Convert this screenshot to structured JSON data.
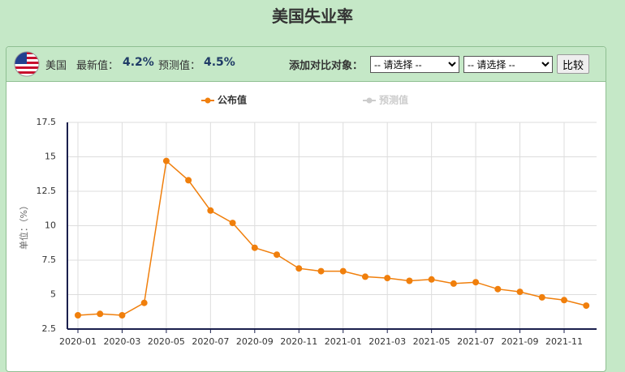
{
  "page": {
    "title": "美国失业率",
    "country": "美国",
    "latest_label": "最新值：",
    "latest_value": "4.2%",
    "forecast_label": "预测值：",
    "forecast_value": "4.5%",
    "compare_label": "添加对比对象：",
    "select_placeholder": "-- 请选择 --",
    "button": "比较"
  },
  "chart_data": {
    "type": "line",
    "categories": [
      "2020-01",
      null,
      "2020-03",
      null,
      "2020-05",
      null,
      "2020-07",
      null,
      "2020-09",
      null,
      "2020-11",
      null,
      "2021-01",
      null,
      "2021-03",
      null,
      "2021-05",
      null,
      "2021-07",
      null,
      "2021-09",
      null,
      "2021-11",
      null
    ],
    "series": [
      {
        "name": "公布值",
        "color": "#f07f0c",
        "values": [
          3.5,
          3.6,
          3.5,
          4.4,
          14.7,
          13.3,
          11.1,
          10.2,
          8.4,
          7.9,
          6.9,
          6.7,
          6.7,
          6.3,
          6.2,
          6.0,
          6.1,
          5.8,
          5.9,
          5.4,
          5.2,
          4.8,
          4.6,
          4.2
        ]
      },
      {
        "name": "预测值",
        "color": "#cccccc",
        "values": [
          null,
          null,
          null,
          null,
          null,
          null,
          null,
          null,
          null,
          null,
          null,
          null,
          null,
          null,
          null,
          null,
          null,
          null,
          null,
          null,
          null,
          null,
          null,
          null
        ]
      }
    ],
    "ylabel": "单位：（%）",
    "ylim": [
      2.5,
      17.5
    ],
    "yticks": [
      2.5,
      5,
      7.5,
      10,
      12.5,
      15,
      17.5
    ],
    "grid": true
  }
}
